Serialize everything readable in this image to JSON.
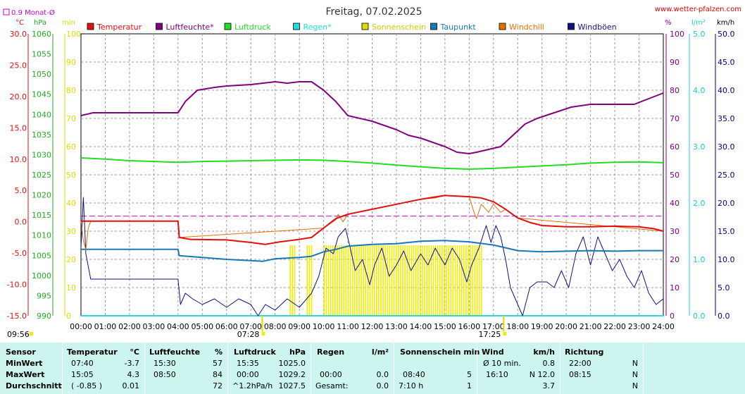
{
  "title": "Freitag, 07.02.2025",
  "site": "www.wetter-pfalzen.com",
  "monthly_avg_label": "0.9 Monat-Ø",
  "units": {
    "c": "°C",
    "hpa": "hPa",
    "min": "min",
    "pct": "%",
    "lm2": "l/m²",
    "kmh": "km/h"
  },
  "sunrise": {
    "time": "07:28",
    "x": 7.47
  },
  "sunset": {
    "time": "17:25",
    "x": 17.42
  },
  "corner_time": "09:56",
  "legend": [
    {
      "name": "Temperatur",
      "color": "#e01010"
    },
    {
      "name": "Luftfeuchte*",
      "color": "#800080"
    },
    {
      "name": "Luftdruck",
      "color": "#22dd22"
    },
    {
      "name": "Regen*",
      "color": "#22dddd"
    },
    {
      "name": "Sonnenschein",
      "color": "#dddd00"
    },
    {
      "name": "Taupunkt",
      "color": "#1878b8"
    },
    {
      "name": "Windchill",
      "color": "#e07000"
    },
    {
      "name": "Windböen",
      "color": "#101080"
    }
  ],
  "chart_data": {
    "type": "line",
    "title": "Freitag, 07.02.2025",
    "xlabel": "",
    "x_ticks": [
      "00:00",
      "01:00",
      "02:00",
      "03:00",
      "04:00",
      "05:00",
      "06:00",
      "07:00",
      "08:00",
      "09:00",
      "10:00",
      "11:00",
      "12:00",
      "13:00",
      "14:00",
      "15:00",
      "16:00",
      "17:00",
      "18:00",
      "19:00",
      "20:00",
      "21:00",
      "22:00",
      "23:00",
      "24:00"
    ],
    "xlim": [
      0,
      24
    ],
    "axes": {
      "temp_c": {
        "range": [
          -15,
          30
        ],
        "ticks": [
          "30.0",
          "25.0",
          "20.0",
          "15.0",
          "10.0",
          "5.0",
          "0.0",
          "-5.0",
          "-10.0",
          "-15.0"
        ],
        "color": "#e01010"
      },
      "pressure_hpa": {
        "range": [
          990,
          1060
        ],
        "ticks": [
          "1060",
          "1055",
          "1050",
          "1045",
          "1040",
          "1035",
          "1030",
          "1025",
          "1020",
          "1015",
          "1010",
          "1005",
          "1000",
          "995",
          "990"
        ],
        "color": "#22aa22"
      },
      "sun_min": {
        "range": [
          0,
          100
        ],
        "ticks": [
          "100",
          "90",
          "80",
          "70",
          "60",
          "50",
          "40",
          "30",
          "20",
          "10",
          "0"
        ],
        "color": "#dddd00"
      },
      "humidity_pct": {
        "range": [
          0,
          100
        ],
        "ticks": [
          "100",
          "90",
          "80",
          "70",
          "60",
          "50",
          "40",
          "30",
          "20",
          "10",
          "0"
        ],
        "color": "#800080"
      },
      "rain_lm2": {
        "range": [
          0,
          5
        ],
        "ticks": [
          "5.0",
          "4.0",
          "3.0",
          "2.0",
          "1.0",
          "0.0"
        ],
        "color": "#22cccc"
      },
      "wind_kmh": {
        "range": [
          0,
          50
        ],
        "ticks": [
          "50.0",
          "45.0",
          "40.0",
          "35.0",
          "30.0",
          "25.0",
          "20.0",
          "15.0",
          "10.0",
          "5.0",
          "0.0"
        ],
        "color": "#000080"
      }
    },
    "monthly_avg_temp": 0.9,
    "series": [
      {
        "name": "Temperatur",
        "axis": "temp_c",
        "color": "#e01010",
        "points": [
          [
            0,
            0.1
          ],
          [
            4.0,
            0.1
          ],
          [
            4.05,
            -2.5
          ],
          [
            4.5,
            -2.8
          ],
          [
            6,
            -2.9
          ],
          [
            7,
            -3.3
          ],
          [
            7.6,
            -3.6
          ],
          [
            8.2,
            -3.2
          ],
          [
            9,
            -2.8
          ],
          [
            9.5,
            -2.5
          ],
          [
            10,
            -1.0
          ],
          [
            10.5,
            0.5
          ],
          [
            11,
            1.2
          ],
          [
            12,
            2.0
          ],
          [
            13,
            2.8
          ],
          [
            14,
            3.6
          ],
          [
            15,
            4.2
          ],
          [
            16,
            4.0
          ],
          [
            16.5,
            3.8
          ],
          [
            17,
            3.2
          ],
          [
            17.5,
            2.0
          ],
          [
            18,
            0.6
          ],
          [
            18.5,
            -0.1
          ],
          [
            19,
            -0.6
          ],
          [
            20,
            -0.8
          ],
          [
            21,
            -0.8
          ],
          [
            22,
            -0.7
          ],
          [
            23,
            -0.8
          ],
          [
            23.6,
            -1.1
          ],
          [
            24,
            -1.5
          ]
        ]
      },
      {
        "name": "Luftfeuchte*",
        "axis": "humidity_pct",
        "color": "#800080",
        "points": [
          [
            0,
            71
          ],
          [
            0.5,
            72
          ],
          [
            1,
            72
          ],
          [
            4.0,
            72
          ],
          [
            4.3,
            76
          ],
          [
            4.8,
            80
          ],
          [
            5.5,
            81
          ],
          [
            6,
            81.5
          ],
          [
            7,
            82
          ],
          [
            7.5,
            82.5
          ],
          [
            8,
            83
          ],
          [
            8.5,
            82.5
          ],
          [
            9,
            83
          ],
          [
            9.5,
            83
          ],
          [
            10,
            80
          ],
          [
            10.5,
            76
          ],
          [
            11,
            71
          ],
          [
            12,
            69
          ],
          [
            13,
            66
          ],
          [
            13.5,
            64
          ],
          [
            14,
            63
          ],
          [
            15,
            60
          ],
          [
            15.5,
            58
          ],
          [
            16,
            57.5
          ],
          [
            16.3,
            58
          ],
          [
            16.8,
            59
          ],
          [
            17.3,
            60
          ],
          [
            17.8,
            64
          ],
          [
            18.3,
            68
          ],
          [
            18.8,
            70
          ],
          [
            19.5,
            72
          ],
          [
            20.2,
            74
          ],
          [
            21,
            75
          ],
          [
            22,
            75
          ],
          [
            22.8,
            75
          ],
          [
            23.4,
            77
          ],
          [
            24,
            79
          ]
        ]
      },
      {
        "name": "Luftdruck",
        "axis": "pressure_hpa",
        "color": "#22dd22",
        "points": [
          [
            0,
            1029.2
          ],
          [
            1,
            1028.9
          ],
          [
            2,
            1028.5
          ],
          [
            3,
            1028.3
          ],
          [
            4,
            1028.1
          ],
          [
            5,
            1028.3
          ],
          [
            6,
            1028.4
          ],
          [
            7,
            1028.5
          ],
          [
            8,
            1028.6
          ],
          [
            9,
            1028.7
          ],
          [
            10,
            1028.6
          ],
          [
            11,
            1028.3
          ],
          [
            12,
            1027.9
          ],
          [
            13,
            1027.4
          ],
          [
            14,
            1027.0
          ],
          [
            15,
            1026.6
          ],
          [
            15.5,
            1026.5
          ],
          [
            16,
            1026.4
          ],
          [
            17,
            1026.6
          ],
          [
            18,
            1026.9
          ],
          [
            19,
            1027.2
          ],
          [
            20,
            1027.5
          ],
          [
            21,
            1027.9
          ],
          [
            22,
            1028.1
          ],
          [
            23,
            1028.2
          ],
          [
            24,
            1028.0
          ]
        ]
      },
      {
        "name": "Regen*",
        "axis": "rain_lm2",
        "color": "#22dddd",
        "points": [
          [
            0,
            0.0
          ],
          [
            24,
            0.0
          ]
        ]
      },
      {
        "name": "Taupunkt",
        "axis": "temp_c",
        "color": "#1878b8",
        "points": [
          [
            0,
            -4.4
          ],
          [
            4.0,
            -4.4
          ],
          [
            4.05,
            -5.4
          ],
          [
            5,
            -5.7
          ],
          [
            6,
            -6.0
          ],
          [
            7,
            -6.2
          ],
          [
            7.5,
            -6.3
          ],
          [
            8,
            -5.9
          ],
          [
            9,
            -5.7
          ],
          [
            9.5,
            -5.5
          ],
          [
            10,
            -4.8
          ],
          [
            10.5,
            -4.4
          ],
          [
            11,
            -3.9
          ],
          [
            12,
            -3.6
          ],
          [
            13,
            -3.5
          ],
          [
            14,
            -3.1
          ],
          [
            15,
            -3.0
          ],
          [
            16,
            -3.2
          ],
          [
            17,
            -3.7
          ],
          [
            18,
            -4.6
          ],
          [
            19,
            -4.8
          ],
          [
            20,
            -4.7
          ],
          [
            21,
            -4.6
          ],
          [
            22,
            -4.7
          ],
          [
            23,
            -4.6
          ],
          [
            24,
            -4.6
          ]
        ]
      },
      {
        "name": "Windchill",
        "axis": "temp_c",
        "color": "#e07000",
        "points": [
          [
            0,
            0.1
          ],
          [
            0.1,
            -3.0
          ],
          [
            0.2,
            -4.5
          ],
          [
            0.3,
            -1.0
          ],
          [
            0.4,
            0.1
          ],
          [
            4.0,
            0.1
          ],
          [
            4.05,
            -2.5
          ],
          [
            10,
            -1.0
          ],
          [
            10.5,
            0.3
          ],
          [
            10.6,
            1.2
          ],
          [
            10.8,
            0.0
          ],
          [
            11,
            1.2
          ],
          [
            14,
            3.6
          ],
          [
            14.6,
            3.8
          ],
          [
            15,
            4.2
          ],
          [
            16,
            4.0
          ],
          [
            16.2,
            1.5
          ],
          [
            16.3,
            0.5
          ],
          [
            16.5,
            2.8
          ],
          [
            16.8,
            1.5
          ],
          [
            17,
            2.8
          ],
          [
            17.3,
            1.5
          ],
          [
            17.5,
            2.0
          ],
          [
            18,
            0.6
          ],
          [
            24,
            -1.5
          ]
        ]
      },
      {
        "name": "Windböen",
        "axis": "wind_kmh",
        "color": "#101080",
        "points": [
          [
            0,
            12
          ],
          [
            0.1,
            21
          ],
          [
            0.2,
            11
          ],
          [
            0.4,
            6.5
          ],
          [
            4.0,
            6.5
          ],
          [
            4.1,
            2
          ],
          [
            4.3,
            4
          ],
          [
            4.6,
            3
          ],
          [
            5,
            2
          ],
          [
            5.5,
            3
          ],
          [
            6,
            1.5
          ],
          [
            6.5,
            3
          ],
          [
            7,
            2
          ],
          [
            7.3,
            0
          ],
          [
            7.6,
            2
          ],
          [
            8,
            1
          ],
          [
            8.5,
            3
          ],
          [
            9,
            1.5
          ],
          [
            9.5,
            4
          ],
          [
            9.8,
            7
          ],
          [
            10.1,
            12
          ],
          [
            10.4,
            11
          ],
          [
            10.6,
            14
          ],
          [
            10.9,
            15.5
          ],
          [
            11.1,
            12
          ],
          [
            11.3,
            8
          ],
          [
            11.6,
            10
          ],
          [
            11.9,
            5.5
          ],
          [
            12.1,
            9
          ],
          [
            12.4,
            12
          ],
          [
            12.7,
            7
          ],
          [
            13,
            9
          ],
          [
            13.3,
            11.5
          ],
          [
            13.6,
            8
          ],
          [
            14,
            11
          ],
          [
            14.3,
            9
          ],
          [
            14.6,
            12
          ],
          [
            15,
            9
          ],
          [
            15.3,
            12
          ],
          [
            15.6,
            10
          ],
          [
            15.9,
            6
          ],
          [
            16.1,
            9
          ],
          [
            16.4,
            12
          ],
          [
            16.7,
            16
          ],
          [
            16.9,
            13
          ],
          [
            17.1,
            16
          ],
          [
            17.3,
            14
          ],
          [
            17.5,
            10
          ],
          [
            17.7,
            5
          ],
          [
            18,
            2
          ],
          [
            18.2,
            0
          ],
          [
            18.5,
            5
          ],
          [
            18.8,
            6
          ],
          [
            19.2,
            6
          ],
          [
            19.5,
            5
          ],
          [
            19.8,
            8
          ],
          [
            20.1,
            5
          ],
          [
            20.4,
            11
          ],
          [
            20.7,
            14
          ],
          [
            21,
            9
          ],
          [
            21.3,
            14
          ],
          [
            21.6,
            11
          ],
          [
            21.9,
            8
          ],
          [
            22.2,
            10
          ],
          [
            22.5,
            7
          ],
          [
            22.8,
            5
          ],
          [
            23.1,
            8
          ],
          [
            23.4,
            4
          ],
          [
            23.7,
            2
          ],
          [
            24,
            3
          ]
        ]
      }
    ],
    "sunshine_bars": {
      "axis": "sun_min",
      "color": "#eeee00",
      "segments": [
        [
          8.6,
          8.85
        ],
        [
          9.3,
          9.55
        ],
        [
          10.0,
          16.5
        ]
      ],
      "height": 25
    }
  },
  "table": {
    "headers": {
      "sensor": "Sensor",
      "temp": "Temperatur",
      "temp_unit": "°C",
      "hum": "Luftfeuchte",
      "hum_unit": "%",
      "press": "Luftdruck",
      "press_unit": "hPa",
      "rain": "Regen",
      "rain_unit": "l/m²",
      "sun": "Sonnenschein min",
      "wind": "Wind",
      "wind_unit": "km/h",
      "dir": "Richtung"
    },
    "rows": [
      {
        "label": "MinWert",
        "temp_time": "07:40",
        "temp_val": "-3.7",
        "hum_time": "15:30",
        "hum_val": "57",
        "press_time": "15:35",
        "press_val": "1025.0",
        "rain_time": "",
        "rain_val": "",
        "sun_time": "",
        "sun_val": "",
        "wind_time": "Ø 10 min.",
        "wind_val": "0.8",
        "dir_time": "22:00",
        "dir_val": "N"
      },
      {
        "label": "MaxWert",
        "temp_time": "15:05",
        "temp_val": "4.3",
        "hum_time": "08:50",
        "hum_val": "84",
        "press_time": "00:00",
        "press_val": "1029.2",
        "rain_time": "00:00",
        "rain_val": "0.0",
        "sun_time": "08:40",
        "sun_val": "5",
        "wind_time": "16:10",
        "wind_val": "N 12.0",
        "dir_time": "08:15",
        "dir_val": "N"
      },
      {
        "label": "Durchschnitt",
        "temp_time": "( -0.85 )",
        "temp_val": "0.01",
        "hum_time": "",
        "hum_val": "72",
        "press_time": "^1.2hPa/h",
        "press_val": "1027.5",
        "rain_time": "Gesamt:",
        "rain_val": "0.0",
        "sun_time": "7:10 h",
        "sun_val": "1",
        "wind_time": "",
        "wind_val": "3.7",
        "dir_time": "",
        "dir_val": "N"
      }
    ]
  }
}
